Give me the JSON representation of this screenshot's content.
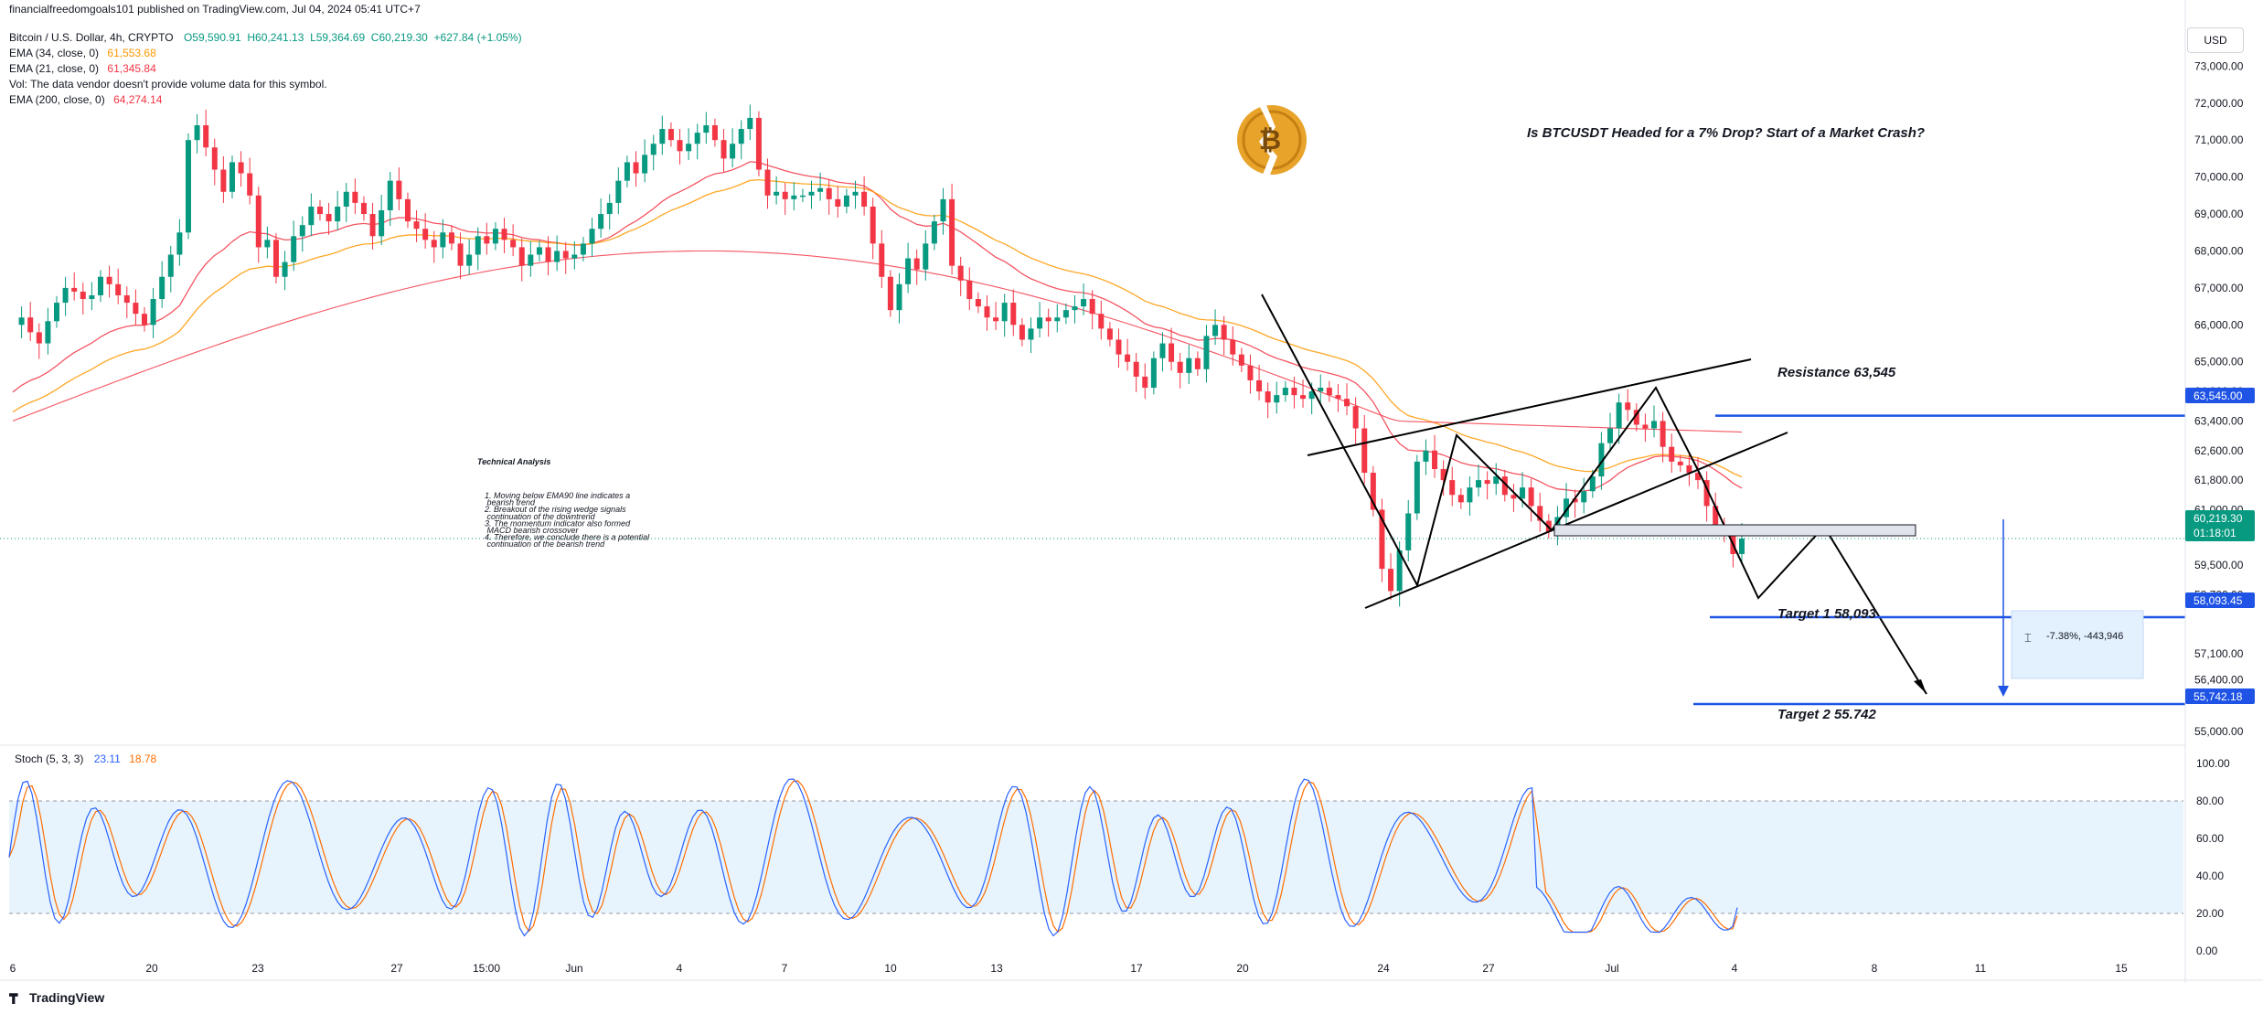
{
  "header": {
    "publisher": "financialfreedomgoals101 published on TradingView.com, Jul 04, 2024 05:41 UTC+7",
    "symbol": "Bitcoin / U.S. Dollar, 4h, CRYPTO",
    "ohlc": "O59,590.91  H60,241.13  L59,364.69  C60,219.30  +627.84 (+1.05%)",
    "indicators": [
      {
        "label": "EMA (34, close, 0)",
        "value": "61,553.68",
        "color": "#ff9800"
      },
      {
        "label": "EMA (21, close, 0)",
        "value": "61,345.84",
        "color": "#f23645"
      },
      {
        "label": "Vol: The data vendor doesn't provide volume data for this symbol.",
        "value": "",
        "color": "#131722"
      },
      {
        "label": "EMA (200, close, 0)",
        "value": "64,274.14",
        "color": "#f23645"
      }
    ]
  },
  "currency": "USD",
  "logo": "TradingView",
  "chart_data": {
    "type": "candlestick",
    "title": "Is BTCUSDT Headed for a 7% Drop? Start of a Market Crash?",
    "ylim": [
      55000,
      73800
    ],
    "y_ticks": [
      55000,
      56400,
      57100,
      58700,
      59500,
      61000,
      61800,
      62600,
      63400,
      64200,
      65000,
      66000,
      67000,
      68000,
      69000,
      70000,
      71000,
      72000,
      73000
    ],
    "x_ticks": [
      "6",
      "20",
      "23",
      "27",
      "15:00",
      "Jun",
      "4",
      "7",
      "10",
      "13",
      "17",
      "20",
      "24",
      "27",
      "Jul",
      "4",
      "8",
      "11",
      "15"
    ],
    "close_path": [
      66000,
      66200,
      65800,
      65500,
      66100,
      66600,
      67000,
      66900,
      66700,
      66800,
      67300,
      67100,
      66800,
      66600,
      66300,
      66000,
      66700,
      67300,
      67900,
      68500,
      71000,
      71400,
      70800,
      70200,
      69600,
      70400,
      70100,
      69500,
      68100,
      68300,
      67300,
      67700,
      68400,
      68700,
      69200,
      69000,
      68800,
      69200,
      69600,
      69300,
      69000,
      68400,
      69100,
      69900,
      69400,
      68800,
      68600,
      68300,
      68100,
      68500,
      68200,
      67600,
      67900,
      68400,
      68200,
      68600,
      68300,
      68100,
      67600,
      67900,
      68100,
      67700,
      68000,
      67800,
      67900,
      68200,
      68600,
      69000,
      69300,
      69900,
      70400,
      70100,
      70600,
      70900,
      71300,
      71000,
      70700,
      70900,
      71200,
      71400,
      71000,
      70500,
      70900,
      71300,
      71600,
      70200,
      69500,
      69600,
      69400,
      69500,
      69500,
      69600,
      69700,
      69400,
      69200,
      69500,
      69600,
      69200,
      68200,
      67300,
      66400,
      67100,
      67800,
      67500,
      68200,
      68800,
      69400,
      67600,
      67200,
      66700,
      66500,
      66200,
      66100,
      66600,
      66000,
      65600,
      65900,
      66200,
      66100,
      66200,
      66400,
      66500,
      66700,
      66300,
      65900,
      65600,
      65200,
      65000,
      64600,
      64300,
      65100,
      65500,
      65000,
      64700,
      65100,
      64800,
      65700,
      66000,
      65600,
      65200,
      64900,
      64500,
      64200,
      63900,
      64100,
      64300,
      64100,
      64000,
      64200,
      64300,
      64100,
      64000,
      63800,
      63200,
      62000,
      61000,
      59400,
      58800,
      59900,
      60900,
      62300,
      62600,
      62100,
      61800,
      61400,
      61200,
      61600,
      61800,
      61700,
      61900,
      61400,
      61300,
      61600,
      61100,
      60700,
      60400,
      60800,
      61300,
      61200,
      61500,
      61900,
      62800,
      63200,
      63900,
      63700,
      63300,
      63200,
      63400,
      62700,
      62300,
      62200,
      62000,
      61800,
      61100,
      60600,
      60300,
      59800,
      60219
    ],
    "ema_21_last": 61345.84,
    "ema_34_last": 61553.68,
    "ema_200_last": 64274.14,
    "resistance": {
      "label": "Resistance 63,545",
      "value": 63545
    },
    "current_price": {
      "value": "60,219.30",
      "countdown": "01:18:01"
    },
    "target1": {
      "label": "Target 1  58,093",
      "value": 58093.45,
      "tag": "58,093.45"
    },
    "target2": {
      "label": "Target 2  55.742",
      "value": 55742.18,
      "tag": "55,742.18"
    },
    "price_tags": {
      "resistance": "63,545.00"
    },
    "measure_label": "-7.38%, -443,946",
    "annotation": {
      "title": "Technical Analysis",
      "lines": [
        "1. Moving below EMA90 line indicates a",
        "    bearish trend",
        "2. Breakout of the rising wedge signals",
        "    continuation of the downtrend",
        "3. The momentum indicator also formed",
        "    MACD bearish crossover",
        "4. Therefore, we conclude there is a potential",
        "    continuation of the bearish trend"
      ]
    },
    "stochastic": {
      "label": "Stoch (5, 3, 3)",
      "k": "23.11",
      "d": "18.78",
      "k_color": "#2962ff",
      "d_color": "#ff6d00",
      "ylim": [
        0,
        100
      ],
      "y_ticks": [
        "100.00",
        "80.00",
        "60.00",
        "40.00",
        "20.00",
        "0.00"
      ],
      "band": [
        20,
        80
      ]
    },
    "colors": {
      "up": "#089981",
      "down": "#f23645",
      "line": "#1e53e5",
      "ema21": "#f23645",
      "ema34": "#ff9800",
      "ema200": "#f23645"
    }
  }
}
